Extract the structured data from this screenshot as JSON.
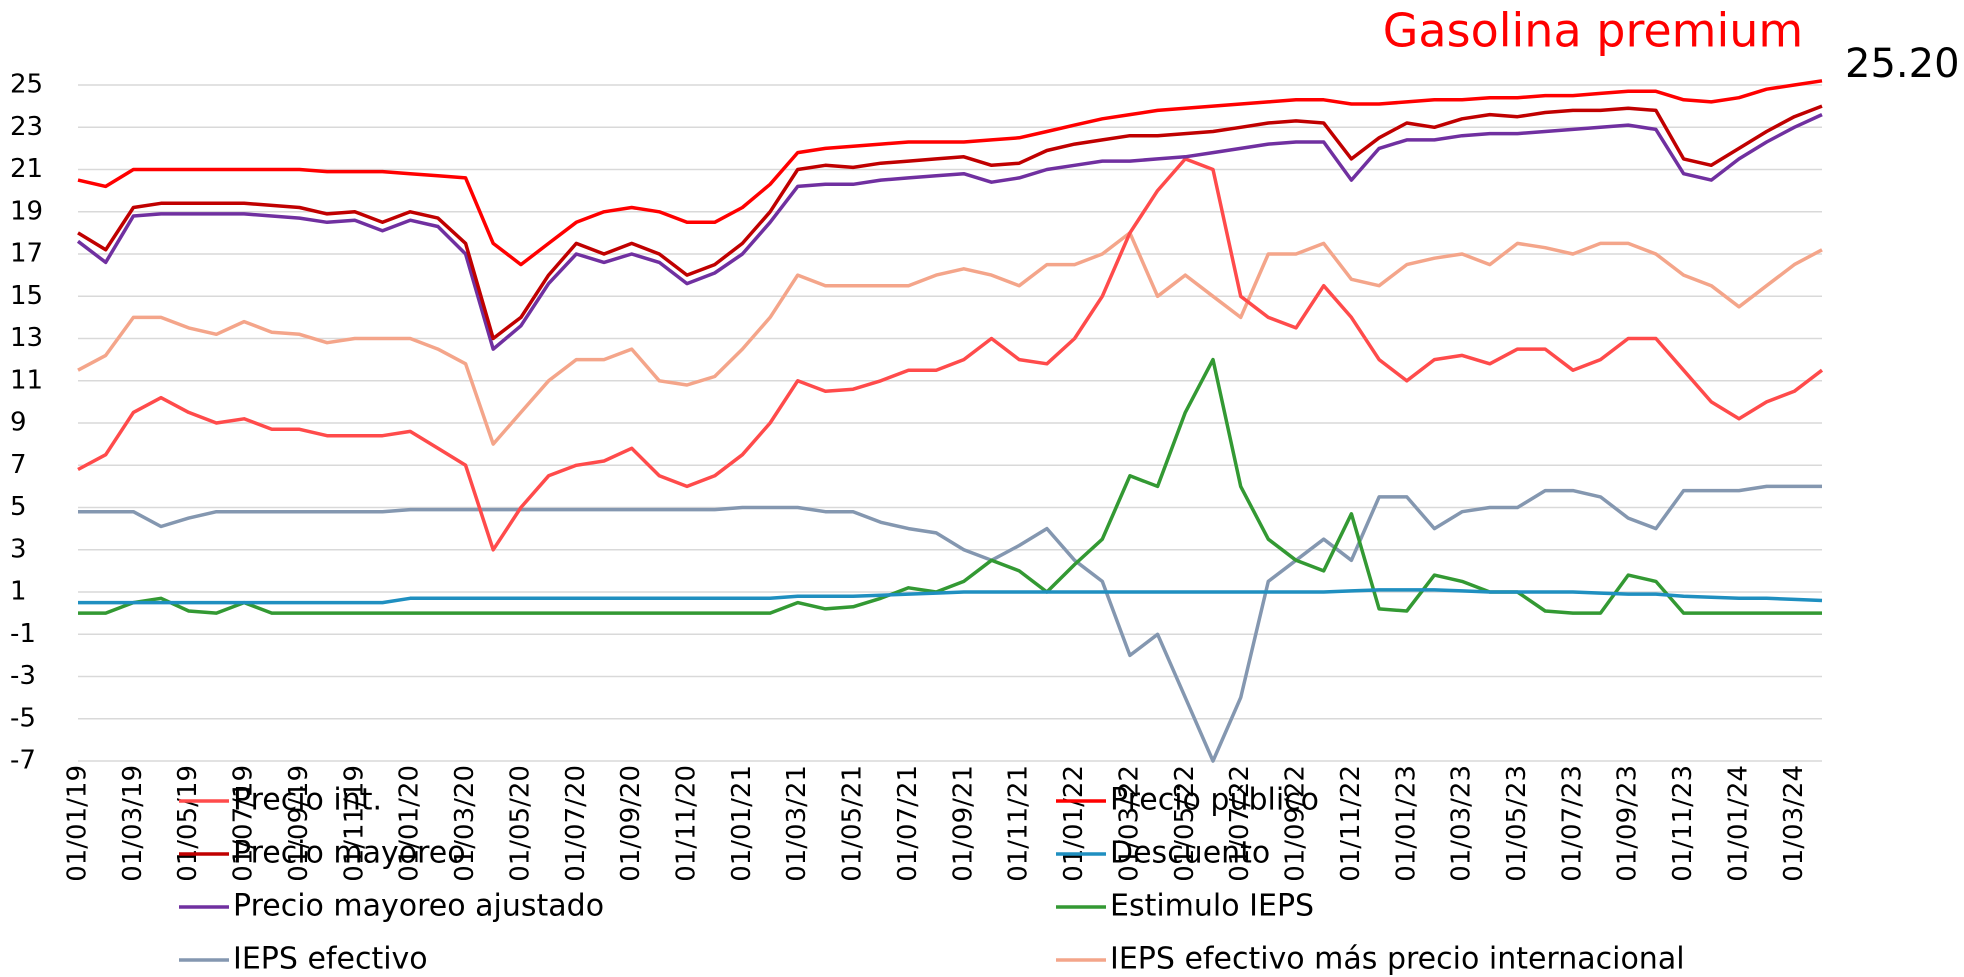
{
  "chart_data": {
    "type": "line",
    "title": "Gasolina premium",
    "annotation": {
      "value": 25.2,
      "label": "25.20"
    },
    "x": [
      "01/01/19",
      "01/02/19",
      "01/03/19",
      "01/04/19",
      "01/05/19",
      "01/06/19",
      "01/07/19",
      "01/08/19",
      "01/09/19",
      "01/10/19",
      "01/11/19",
      "01/12/19",
      "01/01/20",
      "01/02/20",
      "01/03/20",
      "01/04/20",
      "01/05/20",
      "01/06/20",
      "01/07/20",
      "01/08/20",
      "01/09/20",
      "01/10/20",
      "01/11/20",
      "01/12/20",
      "01/01/21",
      "01/02/21",
      "01/03/21",
      "01/04/21",
      "01/05/21",
      "01/06/21",
      "01/07/21",
      "01/08/21",
      "01/09/21",
      "01/10/21",
      "01/11/21",
      "01/12/21",
      "01/01/22",
      "01/02/22",
      "01/03/22",
      "01/04/22",
      "01/05/22",
      "01/06/22",
      "01/07/22",
      "01/08/22",
      "01/09/22",
      "01/10/22",
      "01/11/22",
      "01/12/22",
      "01/01/23",
      "01/02/23",
      "01/03/23",
      "01/04/23",
      "01/05/23",
      "01/06/23",
      "01/07/23",
      "01/08/23",
      "01/09/23",
      "01/10/23",
      "01/11/23",
      "01/12/23",
      "01/01/24",
      "01/02/24",
      "01/03/24",
      "01/04/24"
    ],
    "ylim": [
      -7,
      25
    ],
    "yticks": [
      -7,
      -5,
      -3,
      -1,
      1,
      3,
      5,
      7,
      9,
      11,
      13,
      15,
      17,
      19,
      21,
      23,
      25
    ],
    "grid": true,
    "series": [
      {
        "name": "Precio int.",
        "color": "#ff4b4b",
        "values": [
          6.8,
          7.5,
          9.5,
          10.2,
          9.5,
          9,
          9.2,
          8.7,
          8.7,
          8.4,
          8.4,
          8.4,
          8.6,
          7.8,
          7,
          3,
          5,
          6.5,
          7,
          7.2,
          7.8,
          6.5,
          6,
          6.5,
          7.5,
          9,
          11,
          10.5,
          10.6,
          11,
          11.5,
          11.5,
          12,
          13,
          12,
          11.8,
          13,
          15,
          18,
          20,
          21.5,
          21,
          15,
          14,
          13.5,
          15.5,
          14,
          12,
          11,
          12,
          12.2,
          11.8,
          12.5,
          12.5,
          11.5,
          12,
          13,
          13,
          11.5,
          10,
          9.2,
          10,
          10.5,
          11.5
        ]
      },
      {
        "name": "Precio público",
        "color": "#ff0000",
        "values": [
          20.5,
          20.2,
          21,
          21,
          21,
          21,
          21,
          21,
          21,
          20.9,
          20.9,
          20.9,
          20.8,
          20.7,
          20.6,
          17.5,
          16.5,
          17.5,
          18.5,
          19,
          19.2,
          19,
          18.5,
          18.5,
          19.2,
          20.3,
          21.8,
          22,
          22.1,
          22.2,
          22.3,
          22.3,
          22.3,
          22.4,
          22.5,
          22.8,
          23.1,
          23.4,
          23.6,
          23.8,
          23.9,
          24,
          24.1,
          24.2,
          24.3,
          24.3,
          24.1,
          24.1,
          24.2,
          24.3,
          24.3,
          24.4,
          24.4,
          24.5,
          24.5,
          24.6,
          24.7,
          24.7,
          24.3,
          24.2,
          24.4,
          24.8,
          25,
          25.2
        ]
      },
      {
        "name": "Precio mayoreo",
        "color": "#c00000",
        "values": [
          18,
          17.2,
          19.2,
          19.4,
          19.4,
          19.4,
          19.4,
          19.3,
          19.2,
          18.9,
          19,
          18.5,
          19,
          18.7,
          17.5,
          13,
          14,
          16,
          17.5,
          17,
          17.5,
          17,
          16,
          16.5,
          17.5,
          19,
          21,
          21.2,
          21.1,
          21.3,
          21.4,
          21.5,
          21.6,
          21.2,
          21.3,
          21.9,
          22.2,
          22.4,
          22.6,
          22.6,
          22.7,
          22.8,
          23,
          23.2,
          23.3,
          23.2,
          21.5,
          22.5,
          23.2,
          23,
          23.4,
          23.6,
          23.5,
          23.7,
          23.8,
          23.8,
          23.9,
          23.8,
          21.5,
          21.2,
          22,
          22.8,
          23.5,
          24
        ]
      },
      {
        "name": "Descuento",
        "color": "#1f8fc0",
        "values": [
          0.5,
          0.5,
          0.5,
          0.5,
          0.5,
          0.5,
          0.5,
          0.5,
          0.5,
          0.5,
          0.5,
          0.5,
          0.7,
          0.7,
          0.7,
          0.7,
          0.7,
          0.7,
          0.7,
          0.7,
          0.7,
          0.7,
          0.7,
          0.7,
          0.7,
          0.7,
          0.8,
          0.8,
          0.8,
          0.85,
          0.9,
          0.95,
          1,
          1,
          1,
          1,
          1,
          1,
          1,
          1,
          1,
          1,
          1,
          1,
          1,
          1,
          1.05,
          1.1,
          1.1,
          1.1,
          1.05,
          1,
          1,
          1,
          1,
          0.95,
          0.9,
          0.9,
          0.8,
          0.75,
          0.7,
          0.7,
          0.65,
          0.6
        ]
      },
      {
        "name": "Precio mayoreo ajustado",
        "color": "#7030a0",
        "values": [
          17.6,
          16.6,
          18.8,
          18.9,
          18.9,
          18.9,
          18.9,
          18.8,
          18.7,
          18.5,
          18.6,
          18.1,
          18.6,
          18.3,
          17,
          12.5,
          13.6,
          15.6,
          17,
          16.6,
          17,
          16.6,
          15.6,
          16.1,
          17,
          18.5,
          20.2,
          20.3,
          20.3,
          20.5,
          20.6,
          20.7,
          20.8,
          20.4,
          20.6,
          21,
          21.2,
          21.4,
          21.4,
          21.5,
          21.6,
          21.8,
          22,
          22.2,
          22.3,
          22.3,
          20.5,
          22,
          22.4,
          22.4,
          22.6,
          22.7,
          22.7,
          22.8,
          22.9,
          23,
          23.1,
          22.9,
          20.8,
          20.5,
          21.5,
          22.3,
          23,
          23.6
        ]
      },
      {
        "name": "Estimulo IEPS",
        "color": "#339933",
        "values": [
          0,
          0,
          0.5,
          0.7,
          0.1,
          0,
          0.5,
          0,
          0,
          0,
          0,
          0,
          0,
          0,
          0,
          0,
          0,
          0,
          0,
          0,
          0,
          0,
          0,
          0,
          0,
          0,
          0.5,
          0.2,
          0.3,
          0.7,
          1.2,
          1,
          1.5,
          2.5,
          2,
          1,
          2.3,
          3.5,
          6.5,
          6,
          9.5,
          12,
          6,
          3.5,
          2.5,
          2,
          4.7,
          0.2,
          0.1,
          1.8,
          1.5,
          1,
          1,
          0.1,
          0,
          0,
          1.8,
          1.5,
          0,
          0,
          0,
          0,
          0,
          0
        ]
      },
      {
        "name": "IEPS efectivo",
        "color": "#8497b0",
        "values": [
          4.8,
          4.8,
          4.8,
          4.1,
          4.5,
          4.8,
          4.8,
          4.8,
          4.8,
          4.8,
          4.8,
          4.8,
          4.9,
          4.9,
          4.9,
          4.9,
          4.9,
          4.9,
          4.9,
          4.9,
          4.9,
          4.9,
          4.9,
          4.9,
          5,
          5,
          5,
          4.8,
          4.8,
          4.3,
          4,
          3.8,
          3,
          2.5,
          3.2,
          4,
          2.5,
          1.5,
          -2,
          -1,
          -4,
          -7,
          -4,
          1.5,
          2.5,
          3.5,
          2.5,
          5.5,
          5.5,
          4,
          4.8,
          5,
          5,
          5.8,
          5.8,
          5.5,
          4.5,
          4,
          5.8,
          5.8,
          5.8,
          6,
          6,
          6
        ]
      },
      {
        "name": "IEPS efectivo más precio internacional",
        "color": "#f4a58a",
        "values": [
          11.5,
          12.2,
          14,
          14,
          13.5,
          13.2,
          13.8,
          13.3,
          13.2,
          12.8,
          13,
          13,
          13,
          12.5,
          11.8,
          8,
          9.5,
          11,
          12,
          12,
          12.5,
          11,
          10.8,
          11.2,
          12.5,
          14,
          16,
          15.5,
          15.5,
          15.5,
          15.5,
          16,
          16.3,
          16,
          15.5,
          16.5,
          16.5,
          17,
          18,
          15,
          16,
          15,
          14,
          17,
          17,
          17.5,
          15.8,
          15.5,
          16.5,
          16.8,
          17,
          16.5,
          17.5,
          17.3,
          17,
          17.5,
          17.5,
          17,
          16,
          15.5,
          14.5,
          15.5,
          16.5,
          17.2
        ]
      }
    ]
  }
}
